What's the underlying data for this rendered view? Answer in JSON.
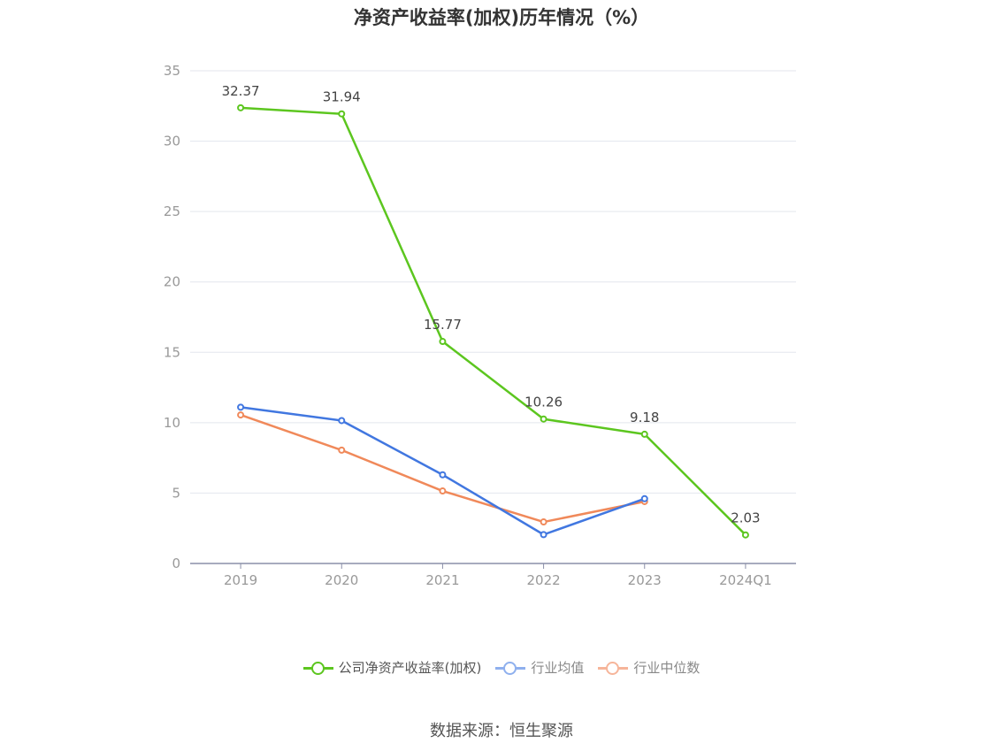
{
  "chart_data": {
    "type": "line",
    "title": "净资产收益率(加权)历年情况（%）",
    "categories": [
      "2019",
      "2020",
      "2021",
      "2022",
      "2023",
      "2024Q1"
    ],
    "ylim": [
      0,
      35
    ],
    "yticks": [
      0,
      5,
      10,
      15,
      20,
      25,
      30,
      35
    ],
    "grid": true,
    "legend_position": "bottom",
    "series": [
      {
        "name": "公司净资产收益率(加权)",
        "color": "#5cc61f",
        "values": [
          32.37,
          31.94,
          15.77,
          10.26,
          9.18,
          2.03
        ],
        "value_labels": [
          "32.37",
          "31.94",
          "15.77",
          "10.26",
          "9.18",
          "2.03"
        ]
      },
      {
        "name": "行业均值",
        "color": "#4177e0",
        "values": [
          11.1,
          10.15,
          6.3,
          2.05,
          4.6,
          null
        ]
      },
      {
        "name": "行业中位数",
        "color": "#f0895a",
        "values": [
          10.55,
          8.05,
          5.15,
          2.95,
          4.4,
          null
        ]
      }
    ]
  },
  "legend": {
    "items": [
      {
        "label": "公司净资产收益率(加权)",
        "color": "#5cc61f"
      },
      {
        "label": "行业均值",
        "color": "#8fb0ee"
      },
      {
        "label": "行业中位数",
        "color": "#f6b59a"
      }
    ]
  },
  "source": "数据来源：恒生聚源"
}
